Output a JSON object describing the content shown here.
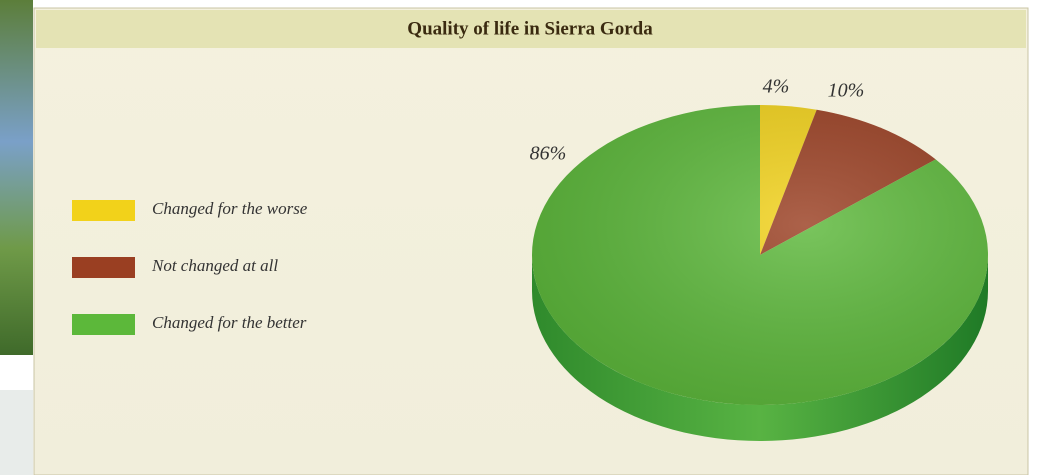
{
  "chart_data": {
    "type": "pie",
    "title": "Quality of life in Sierra Gorda",
    "categories": [
      "Changed for the worse",
      "Not changed at all",
      "Changed for the better"
    ],
    "values": [
      4,
      10,
      86
    ],
    "value_labels": [
      "4%",
      "10%",
      "86%"
    ],
    "colors": [
      "#f2d21a",
      "#9a3f22",
      "#5cb83a"
    ],
    "legend": "left"
  }
}
